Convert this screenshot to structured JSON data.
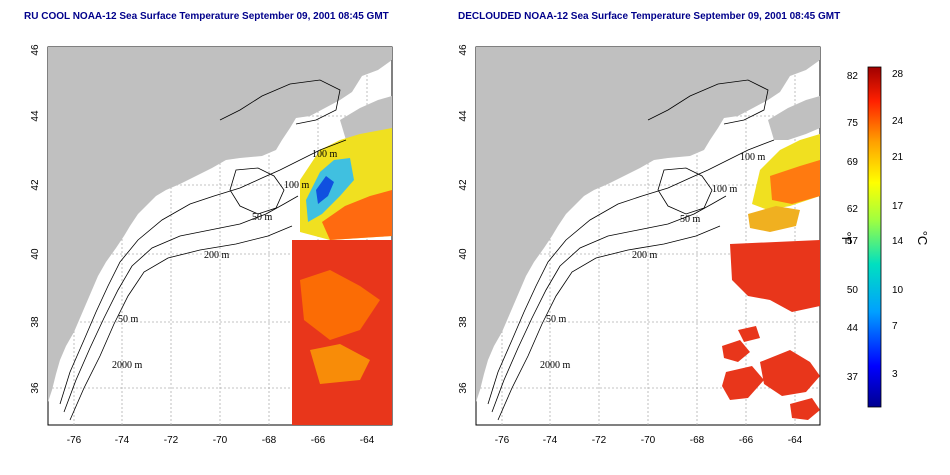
{
  "titles": {
    "left": "RU COOL NOAA-12 Sea Surface Temperature September 09, 2001 08:45 GMT",
    "right": "DECLOUDED NOAA-12 Sea Surface Temperature September 09, 2001 08:45 GMT"
  },
  "axes": {
    "x_ticks": [
      "-76",
      "-74",
      "-72",
      "-70",
      "-68",
      "-66",
      "-64"
    ],
    "y_ticks": [
      "36",
      "38",
      "40",
      "42",
      "44",
      "46"
    ]
  },
  "contour_labels": {
    "c100": "100 m",
    "c50": "50 m",
    "c200": "200 m",
    "c2000": "2000 m"
  },
  "colorbar": {
    "fahrenheit_label": "°F",
    "celsius_label": "°C",
    "fahrenheit_ticks": [
      "82",
      "75",
      "69",
      "62",
      "57",
      "50",
      "44",
      "37"
    ],
    "celsius_ticks": [
      "28",
      "24",
      "21",
      "17",
      "14",
      "10",
      "7",
      "3"
    ]
  },
  "colors": {
    "land": "#c0c0c0",
    "warm": "#e8361b",
    "hot": "#ff5a00",
    "yellow": "#f0e020",
    "cyan": "#40c0e0"
  }
}
